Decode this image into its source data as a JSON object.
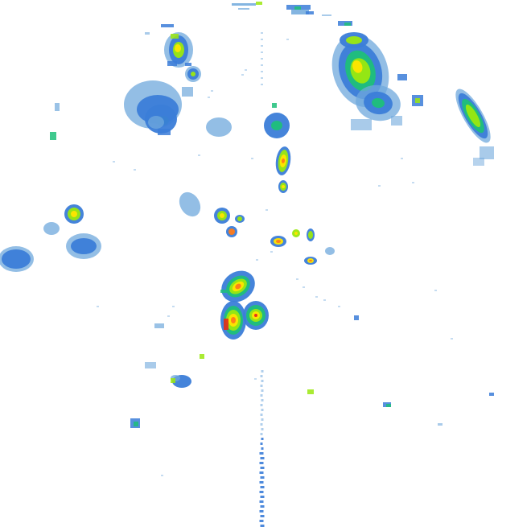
{
  "view": {
    "type": "weather-radar-reflectivity",
    "background": "#ffffff",
    "legend_visible": false,
    "text_visible": false
  },
  "palette": {
    "light": "#6fa8dc",
    "moderate": "#3b7dd8",
    "strong": "#1fbf7a",
    "heavy": "#9be80f",
    "intense": "#ffe500",
    "severe": "#ff7a1a",
    "extreme": "#e82a1a"
  },
  "echo_cells": [
    {
      "id": "north-strip",
      "intensity": "moderate"
    },
    {
      "id": "nw-cluster",
      "intensity": "intense"
    },
    {
      "id": "ne-cluster",
      "intensity": "intense"
    },
    {
      "id": "east-line",
      "intensity": "heavy"
    },
    {
      "id": "north-central-cell",
      "intensity": "strong"
    },
    {
      "id": "central-line",
      "intensity": "severe"
    },
    {
      "id": "west-cells",
      "intensity": "intense"
    },
    {
      "id": "far-west-cell",
      "intensity": "moderate"
    },
    {
      "id": "central-storm-complex",
      "intensity": "extreme"
    },
    {
      "id": "south-scatter",
      "intensity": "strong"
    },
    {
      "id": "south-beam-artifact",
      "intensity": "light"
    }
  ]
}
